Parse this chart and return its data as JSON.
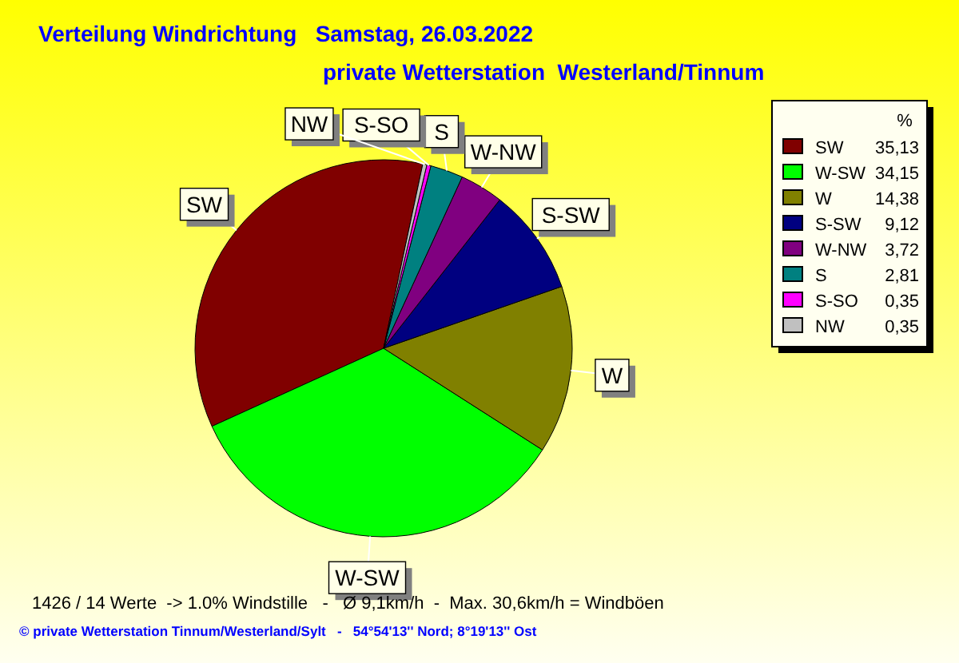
{
  "chart_data": {
    "type": "pie",
    "title": "Verteilung Windrichtung   Samstag, 26.03.2022",
    "subtitle": "private Wetterstation  Westerland/Tinnum",
    "categories": [
      "SW",
      "W-SW",
      "W",
      "S-SW",
      "W-NW",
      "S",
      "S-SO",
      "NW"
    ],
    "values": [
      35.13,
      34.15,
      14.38,
      9.12,
      3.72,
      2.81,
      0.35,
      0.35
    ],
    "value_labels": [
      "35,13",
      "34,15",
      "14,38",
      "9,12",
      "3,72",
      "2,81",
      "0,35",
      "0,35"
    ],
    "colors": [
      "#800000",
      "#00ff00",
      "#808000",
      "#000080",
      "#800080",
      "#008080",
      "#ff00ff",
      "#c0c0c0"
    ],
    "legend": "right",
    "legend_title": "%",
    "annotations": [
      "1426 / 14 Werte  -> 1.0% Windstille   -   Ø 9,1km/h  -  Max. 30,6km/h = Windböen",
      "© private Wetterstation Tinnum/Westerland/Sylt   -   54°54'13'' Nord; 8°19'13'' Ost"
    ]
  }
}
